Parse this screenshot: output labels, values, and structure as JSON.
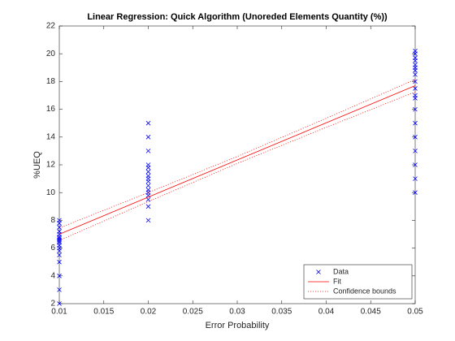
{
  "chart_data": {
    "type": "scatter",
    "title": "Linear Regression: Quick Algorithm (Unoreded Elements Quantity (%))",
    "x_label": "Error Probability",
    "y_label": "%UEQ",
    "xlim": [
      0.01,
      0.05
    ],
    "xticks": [
      0.01,
      0.015,
      0.02,
      0.025,
      0.03,
      0.035,
      0.04,
      0.045,
      0.05
    ],
    "ylim": [
      2,
      22
    ],
    "yticks": [
      2,
      4,
      6,
      8,
      10,
      12,
      14,
      16,
      18,
      20,
      22
    ],
    "legend": "southeast",
    "series": [
      {
        "name": "Data",
        "color": "#0000ff",
        "style": "marker-x",
        "x": [
          0.01,
          0.01,
          0.01,
          0.01,
          0.01,
          0.01,
          0.01,
          0.01,
          0.01,
          0.01,
          0.01,
          0.01,
          0.01,
          0.01,
          0.01,
          0.01,
          0.01,
          0.01,
          0.02,
          0.02,
          0.02,
          0.02,
          0.02,
          0.02,
          0.02,
          0.02,
          0.02,
          0.02,
          0.02,
          0.02,
          0.02,
          0.02,
          0.02,
          0.02,
          0.05,
          0.05,
          0.05,
          0.05,
          0.05,
          0.05,
          0.05,
          0.05,
          0.05,
          0.05,
          0.05,
          0.05,
          0.05,
          0.05,
          0.05,
          0.05,
          0.05,
          0.05,
          0.05
        ],
        "values": [
          2,
          3,
          4,
          5,
          5.5,
          5.8,
          6,
          6.2,
          6.4,
          6.5,
          6.6,
          6.7,
          6.8,
          7,
          7.2,
          7.5,
          7.8,
          8,
          8,
          9,
          9.5,
          9.8,
          10,
          10.2,
          10.5,
          10.8,
          11,
          11.2,
          11.5,
          11.8,
          12,
          13,
          14,
          15,
          10,
          11,
          12,
          13,
          14,
          15,
          16,
          16.8,
          17,
          17.5,
          18,
          18.5,
          18.8,
          19,
          19.2,
          19.5,
          19.7,
          20,
          20.2
        ]
      },
      {
        "name": "Fit",
        "color": "#ff0000",
        "style": "solid",
        "x": [
          0.01,
          0.02,
          0.03,
          0.04,
          0.05
        ],
        "values": [
          7.0,
          9.675,
          12.35,
          15.025,
          17.7
        ]
      },
      {
        "name": "Confidence bounds",
        "color": "#ff0000",
        "style": "dotted",
        "x": [
          0.01,
          0.02,
          0.03,
          0.04,
          0.05
        ],
        "lower": [
          6.55,
          9.35,
          12.1,
          14.7,
          17.25
        ],
        "upper": [
          7.45,
          10.0,
          12.6,
          15.35,
          18.15
        ]
      }
    ]
  }
}
